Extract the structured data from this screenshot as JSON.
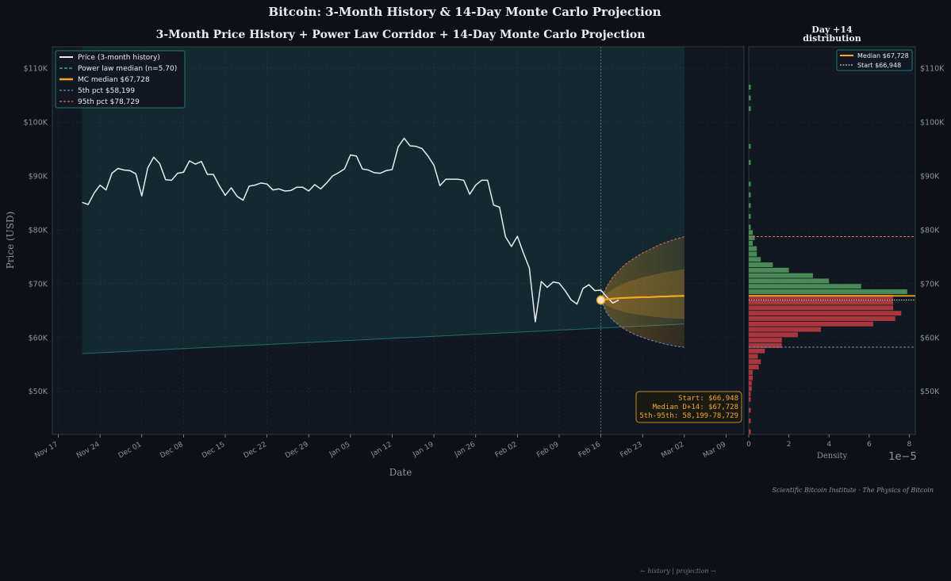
{
  "titles": {
    "main": "Bitcoin: 3-Month History & 14-Day Monte Carlo Projection",
    "left_panel": "3-Month Price History + Power Law Corridor + 14-Day Monte Carlo Projection",
    "right_panel_line1": "Day +14",
    "right_panel_line2": "distribution"
  },
  "axes": {
    "ylabel": "Price (USD)",
    "xlabel": "Date",
    "hist_xlabel": "Density",
    "hist_multiplier": "1e−5",
    "y_ticks": [
      {
        "v": 50000,
        "label": "$50K"
      },
      {
        "v": 60000,
        "label": "$60K"
      },
      {
        "v": 70000,
        "label": "$70K"
      },
      {
        "v": 80000,
        "label": "$80K"
      },
      {
        "v": 90000,
        "label": "$90K"
      },
      {
        "v": 100000,
        "label": "$100K"
      },
      {
        "v": 110000,
        "label": "$110K"
      }
    ],
    "x_ticks": [
      {
        "day": 0,
        "label": "Nov 17"
      },
      {
        "day": 7,
        "label": "Nov 24"
      },
      {
        "day": 14,
        "label": "Dec 01"
      },
      {
        "day": 21,
        "label": "Dec 08"
      },
      {
        "day": 28,
        "label": "Dec 15"
      },
      {
        "day": 35,
        "label": "Dec 22"
      },
      {
        "day": 42,
        "label": "Dec 29"
      },
      {
        "day": 49,
        "label": "Jan 05"
      },
      {
        "day": 56,
        "label": "Jan 12"
      },
      {
        "day": 63,
        "label": "Jan 19"
      },
      {
        "day": 70,
        "label": "Jan 26"
      },
      {
        "day": 77,
        "label": "Feb 02"
      },
      {
        "day": 84,
        "label": "Feb 09"
      },
      {
        "day": 91,
        "label": "Feb 16"
      },
      {
        "day": 98,
        "label": "Feb 23"
      },
      {
        "day": 105,
        "label": "Mar 02"
      },
      {
        "day": 112,
        "label": "Mar 09"
      }
    ],
    "hist_ticks": [
      0,
      2,
      4,
      6,
      8
    ]
  },
  "legend": {
    "price": "Price (3-month history)",
    "power_law": "Power law median  (n=5.70)",
    "mc_median": "MC median  $67,728",
    "p5": "5th pct  $58,199",
    "p95": "95th pct  $78,729"
  },
  "hist_legend": {
    "median": "Median $67,728",
    "start": "Start $66,948"
  },
  "summary_box": {
    "start": "Start: $66,948",
    "median": "Median D+14: $67,728",
    "range": "5th-95th: 58,199-78,729"
  },
  "footer": {
    "credit": "Scientific Bitcoin Institute  ·  The Physics of Bitcoin",
    "hint": "← history  |  projection →"
  },
  "colors": {
    "background": "#0d1117",
    "panel": "#111821",
    "price_line": "#e6edf3",
    "power_law": "#2aa198",
    "mc_median": "#f5a623",
    "p5": "#6e87c4",
    "p95": "#e26a55",
    "hist_above": "#4a8a56",
    "hist_below": "#a8383e"
  },
  "chart_data": [
    {
      "type": "line",
      "x_unit": "date",
      "dates_start": "Nov 21",
      "series": [
        {
          "name": "Price (3-month history)",
          "values": [
            85100,
            84700,
            86800,
            88300,
            87400,
            90500,
            91400,
            91100,
            91000,
            90400,
            86300,
            91500,
            93500,
            92300,
            89300,
            89200,
            90500,
            90700,
            92800,
            92200,
            92700,
            90300,
            90300,
            88200,
            86400,
            87800,
            86200,
            85500,
            88100,
            88300,
            88700,
            88500,
            87400,
            87600,
            87200,
            87300,
            87900,
            87900,
            87200,
            88400,
            87600,
            88700,
            90000,
            90600,
            91300,
            93900,
            93700,
            91300,
            91100,
            90600,
            90500,
            91000,
            91200,
            95400,
            97000,
            95600,
            95500,
            95100,
            93700,
            92000,
            88200,
            89400,
            89400,
            89400,
            89200,
            86600,
            88300,
            89200,
            89200,
            84600,
            84200,
            78700,
            76900,
            78800,
            75700,
            72900,
            62900,
            70400,
            69300,
            70300,
            70100,
            68700,
            67000,
            66200,
            69100,
            69800,
            68700,
            68800,
            67500,
            66400,
            66948
          ]
        },
        {
          "name": "Power law median  (n=5.70)",
          "start_value": 57000,
          "end_value": 62500
        },
        {
          "name": "MC median  $67,728",
          "start_day": 91,
          "values": [
            66948,
            67100,
            67200,
            67300,
            67350,
            67400,
            67450,
            67500,
            67480,
            67550,
            67600,
            67620,
            67680,
            67700,
            67728
          ]
        },
        {
          "name": "5th pct  $58,199",
          "start_day": 91,
          "values": [
            66948,
            64500,
            63200,
            62300,
            61500,
            60900,
            60400,
            60000,
            59600,
            59300,
            59000,
            58700,
            58500,
            58300,
            58199
          ]
        },
        {
          "name": "95th pct  $78,729",
          "start_day": 91,
          "values": [
            66948,
            69500,
            71200,
            72400,
            73500,
            74300,
            75000,
            75700,
            76200,
            76800,
            77300,
            77700,
            78100,
            78400,
            78729
          ]
        }
      ],
      "ylim": [
        42000,
        114000
      ],
      "xlim_days": [
        -1,
        115
      ]
    },
    {
      "type": "histogram",
      "orientation": "horizontal",
      "bin_width": 1000,
      "bins": [
        {
          "lo": 42000,
          "d": 0.1
        },
        {
          "lo": 44000,
          "d": 0.1
        },
        {
          "lo": 46000,
          "d": 0.1
        },
        {
          "lo": 48000,
          "d": 0.1
        },
        {
          "lo": 49000,
          "d": 0.1
        },
        {
          "lo": 50000,
          "d": 0.15
        },
        {
          "lo": 51000,
          "d": 0.15
        },
        {
          "lo": 52000,
          "d": 0.2
        },
        {
          "lo": 53000,
          "d": 0.2
        },
        {
          "lo": 54000,
          "d": 0.5
        },
        {
          "lo": 55000,
          "d": 0.6
        },
        {
          "lo": 56000,
          "d": 0.45
        },
        {
          "lo": 57000,
          "d": 0.8
        },
        {
          "lo": 58000,
          "d": 1.65
        },
        {
          "lo": 59000,
          "d": 1.65
        },
        {
          "lo": 60000,
          "d": 2.45
        },
        {
          "lo": 61000,
          "d": 3.6
        },
        {
          "lo": 62000,
          "d": 6.2
        },
        {
          "lo": 63000,
          "d": 7.3
        },
        {
          "lo": 64000,
          "d": 7.6
        },
        {
          "lo": 65000,
          "d": 7.2
        },
        {
          "lo": 66000,
          "d": 7.2
        },
        {
          "lo": 67000,
          "d": 7.2
        },
        {
          "lo": 68000,
          "d": 7.9
        },
        {
          "lo": 69000,
          "d": 5.6
        },
        {
          "lo": 70000,
          "d": 4.0
        },
        {
          "lo": 71000,
          "d": 3.2
        },
        {
          "lo": 72000,
          "d": 2.0
        },
        {
          "lo": 73000,
          "d": 1.2
        },
        {
          "lo": 74000,
          "d": 0.6
        },
        {
          "lo": 75000,
          "d": 0.4
        },
        {
          "lo": 76000,
          "d": 0.4
        },
        {
          "lo": 77000,
          "d": 0.2
        },
        {
          "lo": 78000,
          "d": 0.3
        },
        {
          "lo": 79000,
          "d": 0.2
        },
        {
          "lo": 80000,
          "d": 0.1
        },
        {
          "lo": 82000,
          "d": 0.1
        },
        {
          "lo": 84000,
          "d": 0.1
        },
        {
          "lo": 86000,
          "d": 0.1
        },
        {
          "lo": 88000,
          "d": 0.1
        },
        {
          "lo": 92000,
          "d": 0.1
        },
        {
          "lo": 95000,
          "d": 0.1
        },
        {
          "lo": 102000,
          "d": 0.1
        },
        {
          "lo": 104000,
          "d": 0.1
        },
        {
          "lo": 106000,
          "d": 0.1
        }
      ],
      "split_value": 67728,
      "start_value": 66948,
      "xlim": [
        0,
        8.3
      ],
      "ylim": [
        42000,
        114000
      ]
    }
  ]
}
